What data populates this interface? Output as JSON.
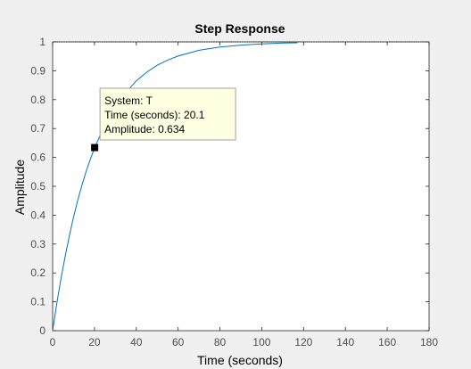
{
  "colors": {
    "figure_bg": "#f0f0f0",
    "axes_bg": "#ffffff",
    "axes_line": "#262626",
    "tick_label": "#4d4d4d",
    "response_line": "#0072bd",
    "steady_state_line": "#262626",
    "datatip_bg": "#ffffe1",
    "datatip_border": "#a0a0a0",
    "marker": "#000000"
  },
  "chart_data": {
    "type": "line",
    "title": "Step Response",
    "xlabel": "Time (seconds)",
    "ylabel": "Amplitude",
    "xlim": [
      0,
      180
    ],
    "ylim": [
      0,
      1
    ],
    "xticks": [
      0,
      20,
      40,
      60,
      80,
      100,
      120,
      140,
      160,
      180
    ],
    "yticks": [
      0,
      0.1,
      0.2,
      0.3,
      0.4,
      0.5,
      0.6,
      0.7,
      0.8,
      0.9,
      1
    ],
    "xtick_labels": [
      "0",
      "20",
      "40",
      "60",
      "80",
      "100",
      "120",
      "140",
      "160",
      "180"
    ],
    "ytick_labels": [
      "0",
      "0.1",
      "0.2",
      "0.3",
      "0.4",
      "0.5",
      "0.6",
      "0.7",
      "0.8",
      "0.9",
      "1"
    ],
    "grid": false,
    "legend": "none",
    "series": [
      {
        "x": [
          0,
          2,
          4,
          6,
          8,
          10,
          12,
          14,
          16,
          18,
          20.1,
          25,
          30,
          35,
          40,
          45,
          50,
          55,
          60,
          70,
          80,
          90,
          100,
          110,
          117
        ],
        "y": [
          0,
          0.095,
          0.181,
          0.258,
          0.329,
          0.393,
          0.451,
          0.503,
          0.551,
          0.593,
          0.634,
          0.713,
          0.776,
          0.825,
          0.865,
          0.895,
          0.919,
          0.937,
          0.951,
          0.971,
          0.982,
          0.989,
          0.993,
          0.996,
          0.997
        ]
      },
      {
        "x": [
          0,
          180
        ],
        "y": [
          1,
          1
        ]
      }
    ],
    "datatip": {
      "x": 20.1,
      "y": 0.634,
      "lines": [
        "System: T",
        "Time (seconds): 20.1",
        "Amplitude: 0.634"
      ]
    }
  }
}
